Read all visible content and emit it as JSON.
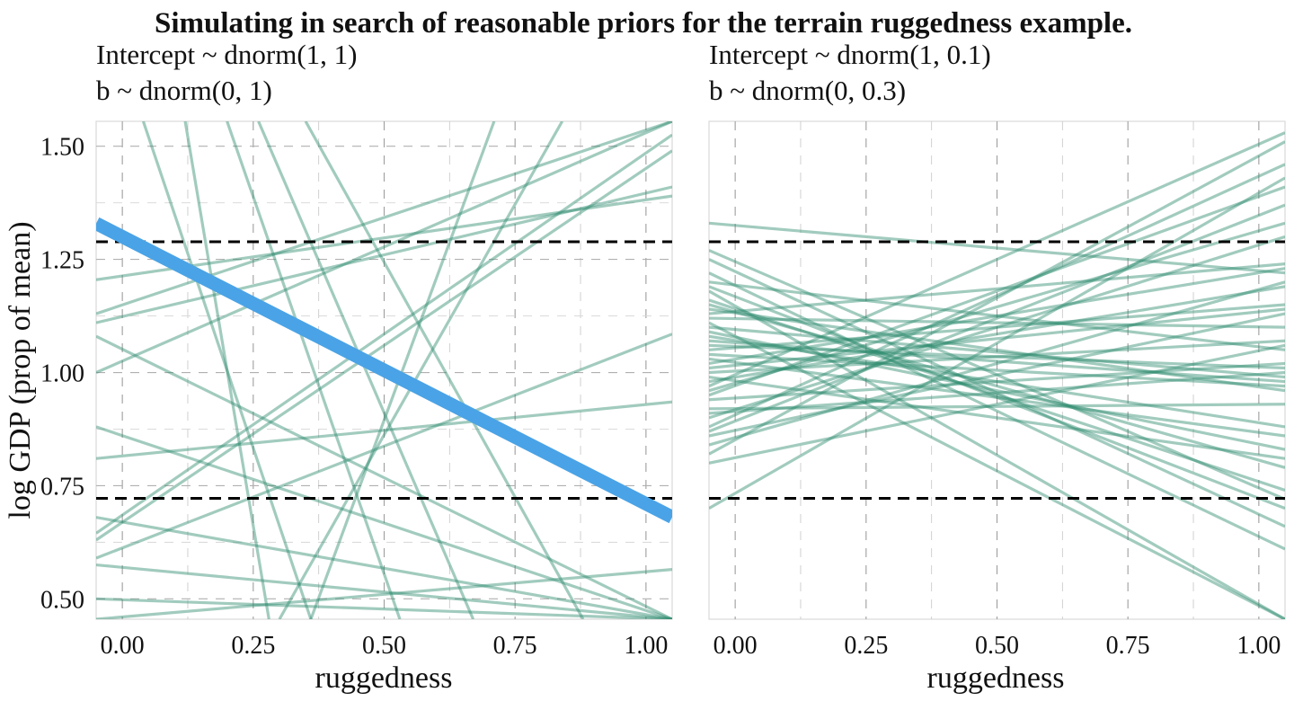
{
  "chart_data": {
    "type": "line",
    "title": "Simulating in search of reasonable priors for the terrain ruggedness example.",
    "ylabel": "log GDP (prop of mean)",
    "colors": {
      "prior_line": "#2e8b6e",
      "highlight_line": "#4aa3e6",
      "reference_line": "#000000",
      "grid": "#bdbdbd"
    },
    "reference_lines": [
      0.722,
      1.289
    ],
    "panels": [
      {
        "subtitle_line1": "Intercept ~ dnorm(1, 1)",
        "subtitle_line2": "b ~ dnorm(0, 1)",
        "xlabel": "ruggedness",
        "xlim": [
          -0.05,
          1.05
        ],
        "ylim": [
          0.455,
          1.555
        ],
        "xticks": [
          "0.00",
          "0.25",
          "0.50",
          "0.75",
          "1.00"
        ],
        "yticks": [
          "0.50",
          "0.75",
          "1.00",
          "1.25",
          "1.50"
        ],
        "grid": true,
        "highlight": {
          "intercept": 1.3,
          "slope": -0.59
        },
        "lines": [
          [
            -0.05,
            0.645,
            1.05,
            1.525
          ],
          [
            -0.05,
            1.11,
            1.05,
            1.41
          ],
          [
            -0.05,
            1.205,
            1.05,
            1.39
          ],
          [
            -0.05,
            0.81,
            1.05,
            0.935
          ],
          [
            -0.05,
            0.59,
            1.05,
            1.085
          ],
          [
            -0.05,
            0.63,
            1.05,
            1.49
          ],
          [
            -0.05,
            1.13,
            1.05,
            1.555
          ],
          [
            -0.05,
            1.0,
            1.05,
            1.555
          ],
          [
            -0.05,
            0.68,
            1.05,
            0.455
          ],
          [
            -0.05,
            0.88,
            1.05,
            0.455
          ],
          [
            -0.05,
            0.5,
            1.05,
            0.455
          ],
          [
            -0.05,
            1.08,
            1.05,
            0.455
          ],
          [
            -0.05,
            0.575,
            1.05,
            0.455
          ],
          [
            0.04,
            1.555,
            0.36,
            0.455
          ],
          [
            0.12,
            1.555,
            0.28,
            0.455
          ],
          [
            0.26,
            1.555,
            0.67,
            0.455
          ],
          [
            0.35,
            1.555,
            0.88,
            0.455
          ],
          [
            0.2,
            1.555,
            0.53,
            0.455
          ],
          [
            0.36,
            0.455,
            0.71,
            1.555
          ],
          [
            0.3,
            0.455,
            0.84,
            1.555
          ],
          [
            -0.05,
            0.455,
            1.05,
            0.565
          ]
        ]
      },
      {
        "subtitle_line1": "Intercept ~ dnorm(1, 0.1)",
        "subtitle_line2": "b ~ dnorm(0, 0.3)",
        "xlabel": "ruggedness",
        "xlim": [
          -0.05,
          1.05
        ],
        "ylim": [
          0.455,
          1.555
        ],
        "xticks": [
          "0.00",
          "0.25",
          "0.50",
          "0.75",
          "1.00"
        ],
        "yticks": [],
        "grid": true,
        "lines": [
          [
            -0.05,
            1.33,
            1.05,
            1.22
          ],
          [
            -0.05,
            1.27,
            1.05,
            0.72
          ],
          [
            -0.05,
            1.25,
            1.05,
            0.66
          ],
          [
            -0.05,
            1.22,
            1.05,
            0.61
          ],
          [
            -0.05,
            1.19,
            1.05,
            0.7
          ],
          [
            -0.05,
            1.16,
            1.05,
            0.74
          ],
          [
            -0.05,
            1.14,
            1.05,
            0.96
          ],
          [
            -0.05,
            1.12,
            1.05,
            1.1
          ],
          [
            -0.05,
            1.1,
            1.05,
            0.99
          ],
          [
            -0.05,
            1.08,
            1.05,
            0.88
          ],
          [
            -0.05,
            1.06,
            1.05,
            1.01
          ],
          [
            -0.05,
            1.05,
            1.05,
            1.15
          ],
          [
            -0.05,
            1.04,
            1.05,
            0.97
          ],
          [
            -0.05,
            1.03,
            1.05,
            0.86
          ],
          [
            -0.05,
            1.02,
            1.05,
            1.23
          ],
          [
            -0.05,
            1.0,
            1.05,
            1.07
          ],
          [
            -0.05,
            0.99,
            1.05,
            0.81
          ],
          [
            -0.05,
            0.98,
            1.05,
            1.19
          ],
          [
            -0.05,
            0.96,
            1.05,
            1.33
          ],
          [
            -0.05,
            0.94,
            1.05,
            1.02
          ],
          [
            -0.05,
            0.92,
            1.05,
            0.93
          ],
          [
            -0.05,
            0.9,
            1.05,
            1.3
          ],
          [
            -0.05,
            0.88,
            1.05,
            1.46
          ],
          [
            -0.05,
            0.86,
            1.05,
            1.13
          ],
          [
            -0.05,
            0.84,
            1.05,
            1.2
          ],
          [
            -0.05,
            0.82,
            1.05,
            1.51
          ],
          [
            -0.05,
            0.8,
            1.05,
            1.06
          ],
          [
            -0.05,
            0.7,
            1.05,
            1.43
          ],
          [
            -0.05,
            1.11,
            1.05,
            0.455
          ],
          [
            -0.05,
            1.07,
            1.05,
            0.98
          ],
          [
            -0.05,
            0.95,
            1.05,
            1.41
          ],
          [
            -0.05,
            0.91,
            1.05,
            1.0
          ],
          [
            -0.05,
            1.01,
            1.05,
            1.14
          ],
          [
            -0.05,
            1.15,
            1.05,
            0.79
          ],
          [
            -0.05,
            0.97,
            1.05,
            1.53
          ],
          [
            -0.05,
            1.2,
            1.05,
            1.05
          ],
          [
            -0.05,
            1.09,
            1.05,
            0.83
          ],
          [
            -0.05,
            0.87,
            1.05,
            1.37
          ],
          [
            -0.05,
            1.18,
            1.05,
            0.455
          ],
          [
            -0.05,
            1.13,
            1.05,
            1.24
          ]
        ]
      }
    ]
  }
}
